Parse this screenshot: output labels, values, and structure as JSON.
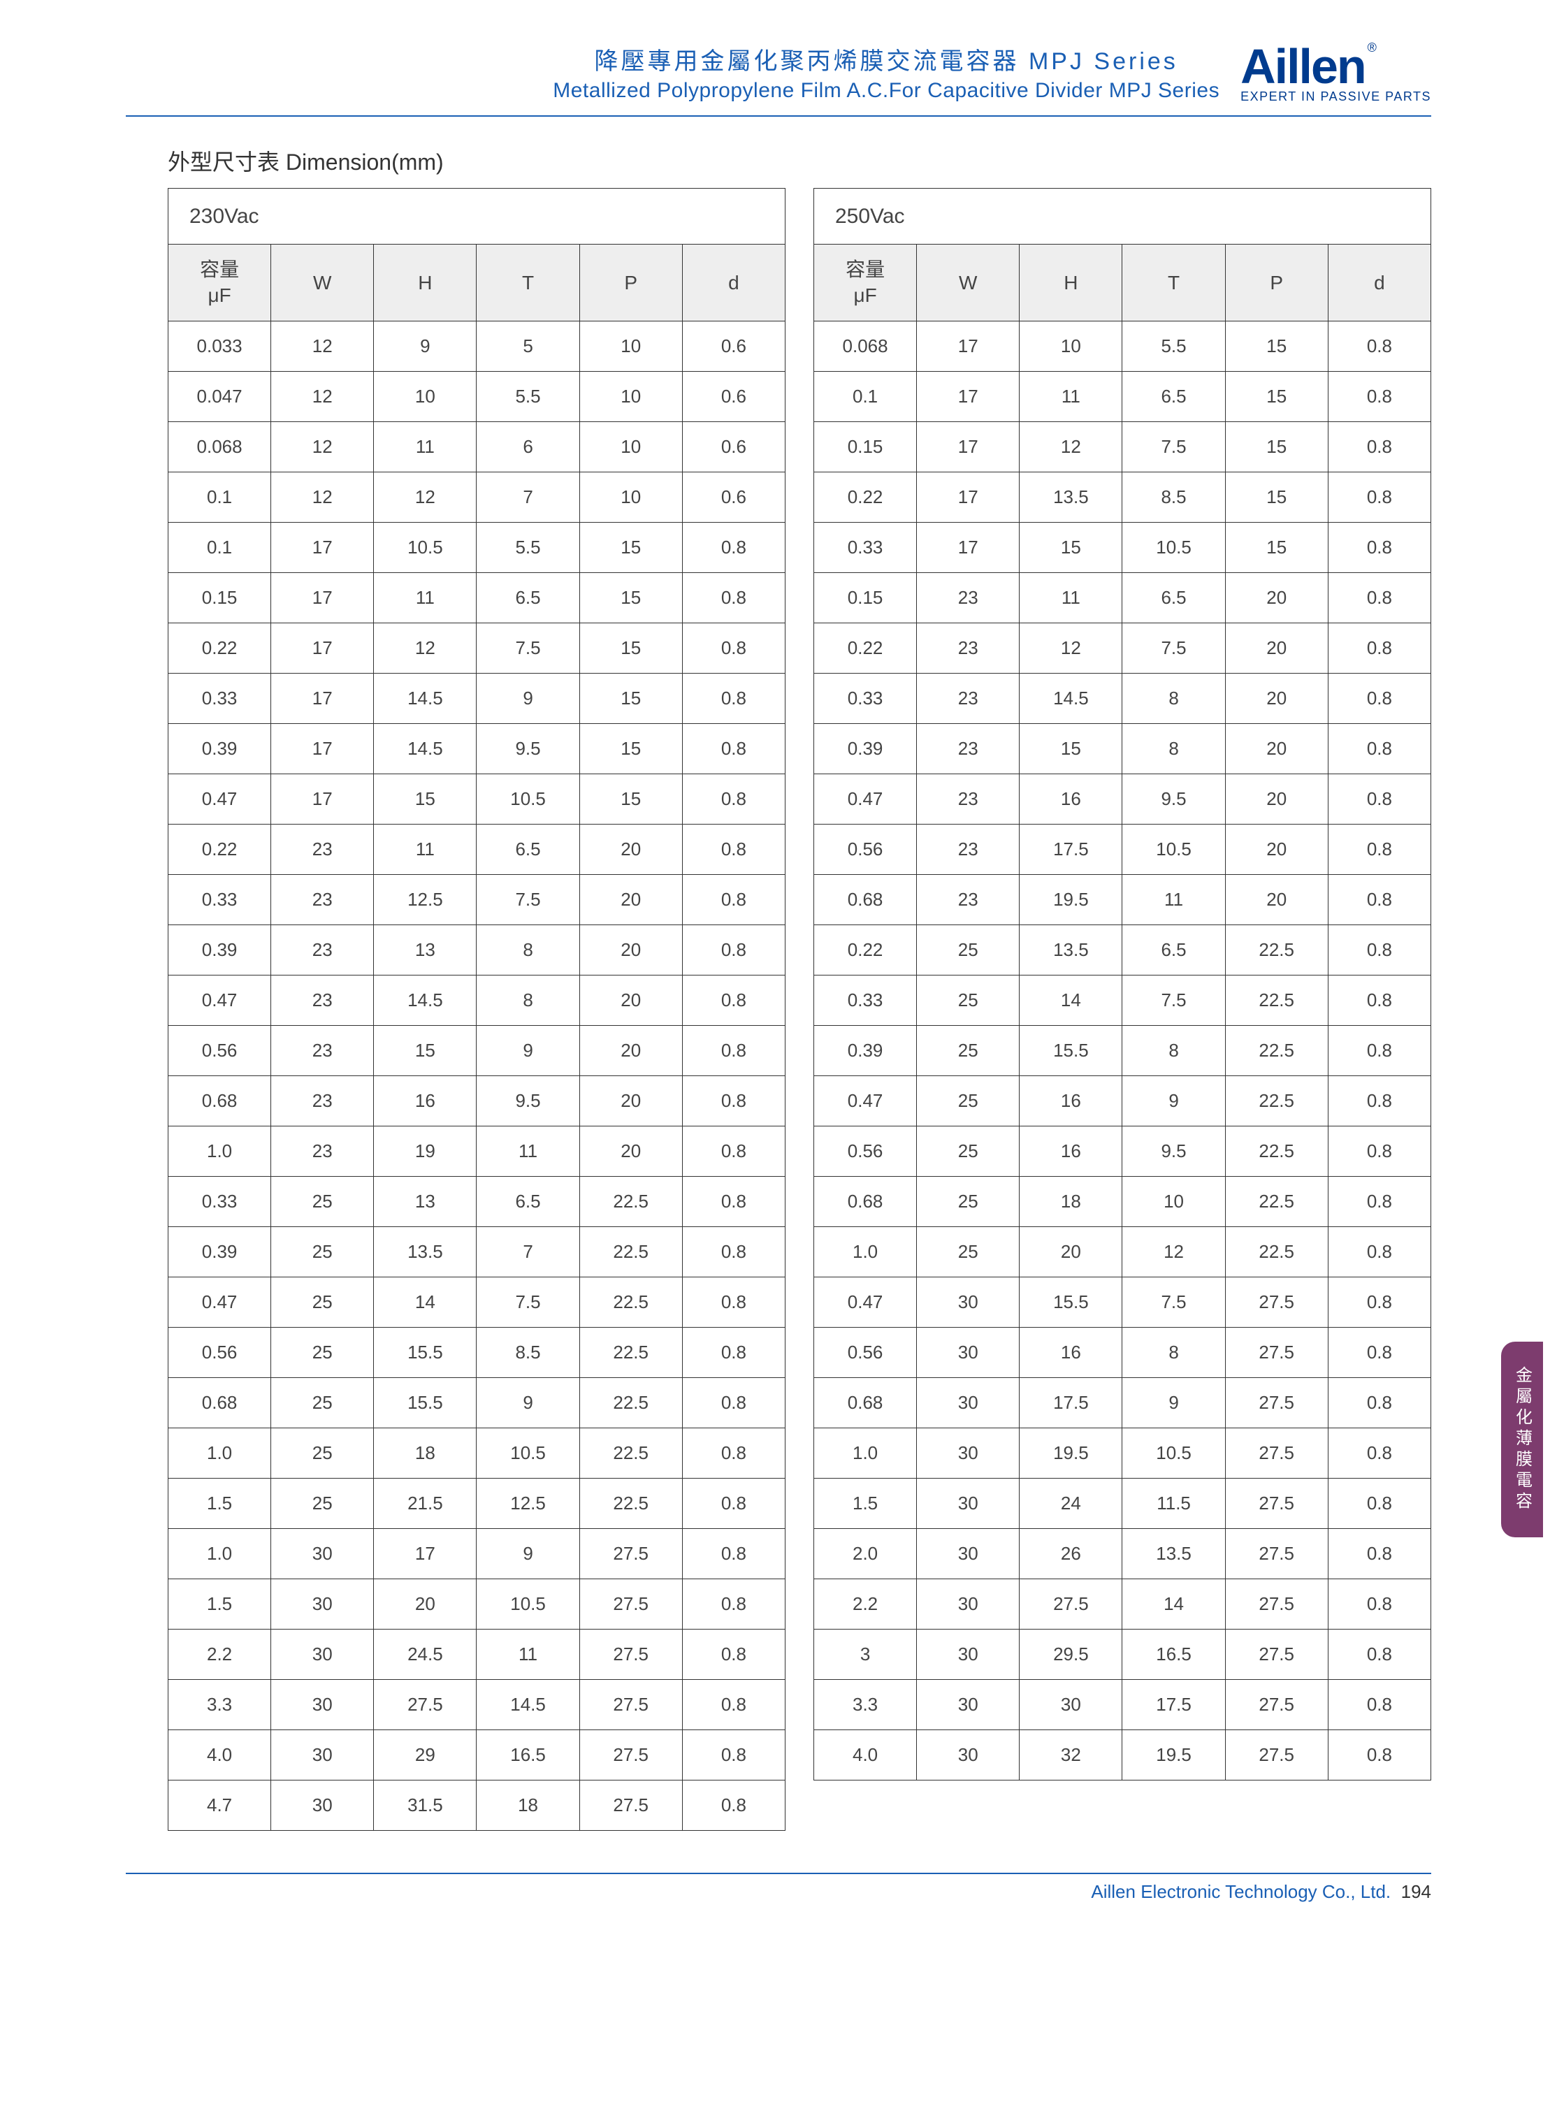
{
  "header": {
    "title_cn": "降壓專用金屬化聚丙烯膜交流電容器 MPJ Series",
    "title_en": "Metallized Polypropylene Film A.C.For Capacitive Divider MPJ Series",
    "brand_name": "Aillen",
    "brand_reg": "®",
    "brand_tagline": "EXPERT IN PASSIVE PARTS"
  },
  "section_title": "外型尺寸表  Dimension(mm)",
  "side_tab": "金屬化薄膜電容",
  "footer": {
    "company": "Aillen Electronic Technology Co., Ltd.",
    "page": "194"
  },
  "columns_label": {
    "cap_cn": "容量",
    "cap_unit": "μF",
    "W": "W",
    "H": "H",
    "T": "T",
    "P": "P",
    "d": "d"
  },
  "table230": {
    "voltage": "230Vac",
    "rows": [
      [
        "0.033",
        "12",
        "9",
        "5",
        "10",
        "0.6"
      ],
      [
        "0.047",
        "12",
        "10",
        "5.5",
        "10",
        "0.6"
      ],
      [
        "0.068",
        "12",
        "11",
        "6",
        "10",
        "0.6"
      ],
      [
        "0.1",
        "12",
        "12",
        "7",
        "10",
        "0.6"
      ],
      [
        "0.1",
        "17",
        "10.5",
        "5.5",
        "15",
        "0.8"
      ],
      [
        "0.15",
        "17",
        "11",
        "6.5",
        "15",
        "0.8"
      ],
      [
        "0.22",
        "17",
        "12",
        "7.5",
        "15",
        "0.8"
      ],
      [
        "0.33",
        "17",
        "14.5",
        "9",
        "15",
        "0.8"
      ],
      [
        "0.39",
        "17",
        "14.5",
        "9.5",
        "15",
        "0.8"
      ],
      [
        "0.47",
        "17",
        "15",
        "10.5",
        "15",
        "0.8"
      ],
      [
        "0.22",
        "23",
        "11",
        "6.5",
        "20",
        "0.8"
      ],
      [
        "0.33",
        "23",
        "12.5",
        "7.5",
        "20",
        "0.8"
      ],
      [
        "0.39",
        "23",
        "13",
        "8",
        "20",
        "0.8"
      ],
      [
        "0.47",
        "23",
        "14.5",
        "8",
        "20",
        "0.8"
      ],
      [
        "0.56",
        "23",
        "15",
        "9",
        "20",
        "0.8"
      ],
      [
        "0.68",
        "23",
        "16",
        "9.5",
        "20",
        "0.8"
      ],
      [
        "1.0",
        "23",
        "19",
        "11",
        "20",
        "0.8"
      ],
      [
        "0.33",
        "25",
        "13",
        "6.5",
        "22.5",
        "0.8"
      ],
      [
        "0.39",
        "25",
        "13.5",
        "7",
        "22.5",
        "0.8"
      ],
      [
        "0.47",
        "25",
        "14",
        "7.5",
        "22.5",
        "0.8"
      ],
      [
        "0.56",
        "25",
        "15.5",
        "8.5",
        "22.5",
        "0.8"
      ],
      [
        "0.68",
        "25",
        "15.5",
        "9",
        "22.5",
        "0.8"
      ],
      [
        "1.0",
        "25",
        "18",
        "10.5",
        "22.5",
        "0.8"
      ],
      [
        "1.5",
        "25",
        "21.5",
        "12.5",
        "22.5",
        "0.8"
      ],
      [
        "1.0",
        "30",
        "17",
        "9",
        "27.5",
        "0.8"
      ],
      [
        "1.5",
        "30",
        "20",
        "10.5",
        "27.5",
        "0.8"
      ],
      [
        "2.2",
        "30",
        "24.5",
        "11",
        "27.5",
        "0.8"
      ],
      [
        "3.3",
        "30",
        "27.5",
        "14.5",
        "27.5",
        "0.8"
      ],
      [
        "4.0",
        "30",
        "29",
        "16.5",
        "27.5",
        "0.8"
      ],
      [
        "4.7",
        "30",
        "31.5",
        "18",
        "27.5",
        "0.8"
      ]
    ]
  },
  "table250": {
    "voltage": "250Vac",
    "rows": [
      [
        "0.068",
        "17",
        "10",
        "5.5",
        "15",
        "0.8"
      ],
      [
        "0.1",
        "17",
        "11",
        "6.5",
        "15",
        "0.8"
      ],
      [
        "0.15",
        "17",
        "12",
        "7.5",
        "15",
        "0.8"
      ],
      [
        "0.22",
        "17",
        "13.5",
        "8.5",
        "15",
        "0.8"
      ],
      [
        "0.33",
        "17",
        "15",
        "10.5",
        "15",
        "0.8"
      ],
      [
        "0.15",
        "23",
        "11",
        "6.5",
        "20",
        "0.8"
      ],
      [
        "0.22",
        "23",
        "12",
        "7.5",
        "20",
        "0.8"
      ],
      [
        "0.33",
        "23",
        "14.5",
        "8",
        "20",
        "0.8"
      ],
      [
        "0.39",
        "23",
        "15",
        "8",
        "20",
        "0.8"
      ],
      [
        "0.47",
        "23",
        "16",
        "9.5",
        "20",
        "0.8"
      ],
      [
        "0.56",
        "23",
        "17.5",
        "10.5",
        "20",
        "0.8"
      ],
      [
        "0.68",
        "23",
        "19.5",
        "11",
        "20",
        "0.8"
      ],
      [
        "0.22",
        "25",
        "13.5",
        "6.5",
        "22.5",
        "0.8"
      ],
      [
        "0.33",
        "25",
        "14",
        "7.5",
        "22.5",
        "0.8"
      ],
      [
        "0.39",
        "25",
        "15.5",
        "8",
        "22.5",
        "0.8"
      ],
      [
        "0.47",
        "25",
        "16",
        "9",
        "22.5",
        "0.8"
      ],
      [
        "0.56",
        "25",
        "16",
        "9.5",
        "22.5",
        "0.8"
      ],
      [
        "0.68",
        "25",
        "18",
        "10",
        "22.5",
        "0.8"
      ],
      [
        "1.0",
        "25",
        "20",
        "12",
        "22.5",
        "0.8"
      ],
      [
        "0.47",
        "30",
        "15.5",
        "7.5",
        "27.5",
        "0.8"
      ],
      [
        "0.56",
        "30",
        "16",
        "8",
        "27.5",
        "0.8"
      ],
      [
        "0.68",
        "30",
        "17.5",
        "9",
        "27.5",
        "0.8"
      ],
      [
        "1.0",
        "30",
        "19.5",
        "10.5",
        "27.5",
        "0.8"
      ],
      [
        "1.5",
        "30",
        "24",
        "11.5",
        "27.5",
        "0.8"
      ],
      [
        "2.0",
        "30",
        "26",
        "13.5",
        "27.5",
        "0.8"
      ],
      [
        "2.2",
        "30",
        "27.5",
        "14",
        "27.5",
        "0.8"
      ],
      [
        "3",
        "30",
        "29.5",
        "16.5",
        "27.5",
        "0.8"
      ],
      [
        "3.3",
        "30",
        "30",
        "17.5",
        "27.5",
        "0.8"
      ],
      [
        "4.0",
        "30",
        "32",
        "19.5",
        "27.5",
        "0.8"
      ]
    ]
  },
  "style": {
    "accent_color": "#1a5fb4",
    "brand_color": "#003b8e",
    "header_bg": "#eeeeee",
    "border_color": "#333333",
    "side_tab_color": "#7d3c6e",
    "body_font_size": 26,
    "header_font_size": 28
  }
}
